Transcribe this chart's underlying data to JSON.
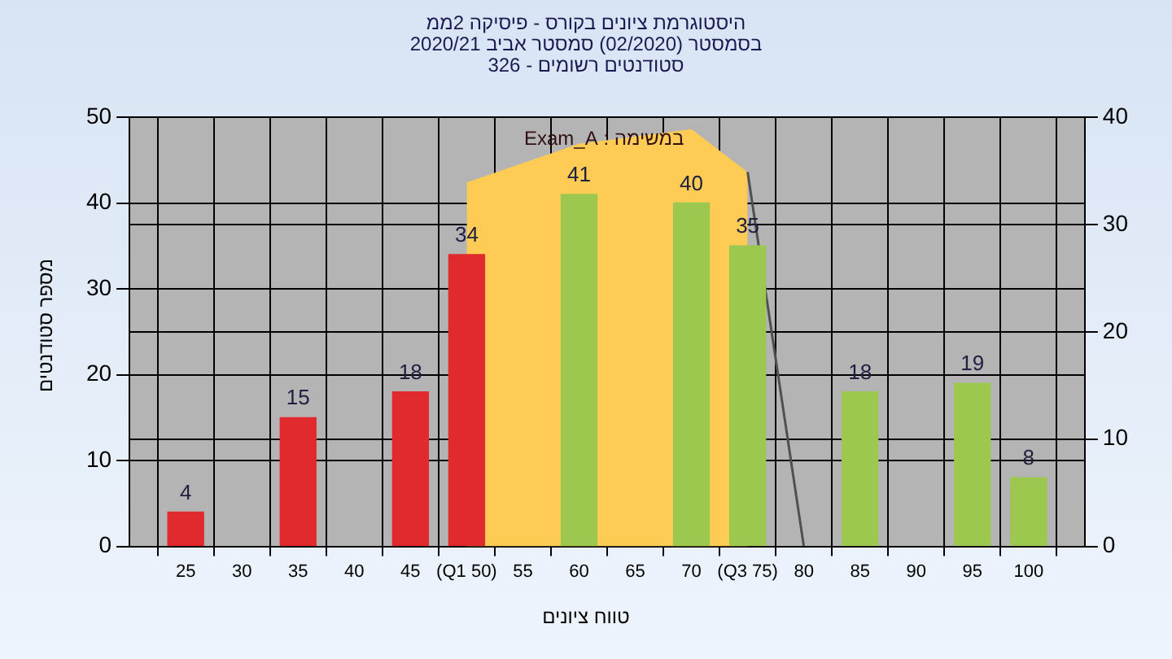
{
  "chart_data": {
    "type": "bar",
    "title": "היסטוגרמת ציונים בקורס - פיסיקה 2ממ",
    "subtitle": "בסמסטר (02/2020) סמסטר אביב 2020/21\nסטודנטים רשומים - 326",
    "xlabel": "טווח ציונים",
    "ylabel": "מספר סטודנטים",
    "annotations": [
      "במשימה : Exam_A"
    ],
    "x": [
      25,
      35,
      45,
      50,
      60,
      70,
      75,
      85,
      95,
      100
    ],
    "series": [
      {
        "value_labels": [
          "4",
          "15",
          "18",
          "34",
          "41",
          "40",
          "35",
          "18",
          "19",
          "8"
        ],
        "colors": [
          "#e02a2e",
          "#e02a2e",
          "#e02a2e",
          "#e02a2e",
          "#9cc850",
          "#9cc850",
          "#9cc850",
          "#9cc850",
          "#9cc850",
          "#9cc850"
        ],
        "values": [
          4,
          15,
          18,
          34,
          41,
          40,
          35,
          18,
          19,
          8
        ]
      },
      {
        "type": "area",
        "color": "#fecb55",
        "x": [
          50,
          60,
          70,
          75
        ],
        "values": [
          42.4,
          46.9,
          48.6,
          43.6
        ]
      },
      {
        "type": "line",
        "color": "#505050",
        "x": [
          75,
          80
        ],
        "values": [
          43.6,
          0
        ]
      }
    ],
    "grid": true,
    "legend": false,
    "xlim": [
      20,
      105
    ],
    "xticks": [
      25,
      30,
      35,
      40,
      45,
      {
        "value": 50,
        "label": "(Q1 50)"
      },
      55,
      60,
      65,
      70,
      {
        "value": 75,
        "label": "(Q3 75)"
      },
      80,
      85,
      90,
      95,
      100
    ],
    "ylim": [
      0,
      50
    ],
    "yticks": [
      0,
      10,
      20,
      30,
      40,
      50
    ],
    "y2lim": [
      0,
      40
    ],
    "y2ticks": [
      0,
      10,
      20,
      30,
      40
    ]
  }
}
